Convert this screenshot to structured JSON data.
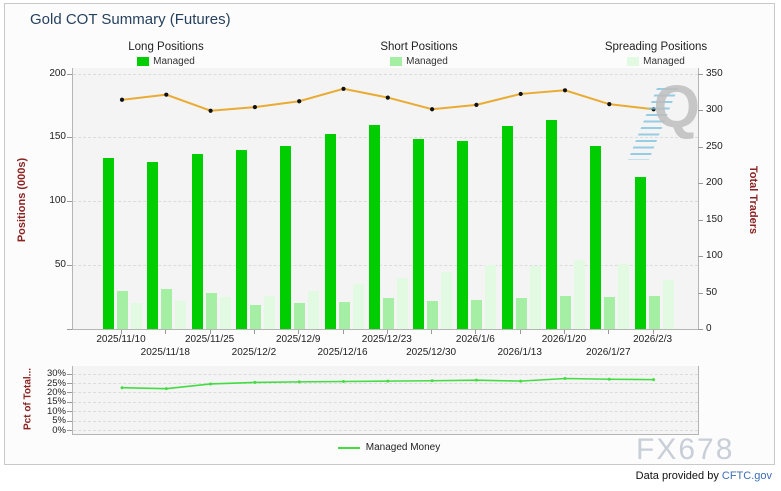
{
  "title": "Gold COT Summary (Futures)",
  "legend_groups": [
    {
      "title": "Long Positions",
      "item": "Managed",
      "color": "#00CE00"
    },
    {
      "title": "Short Positions",
      "item": "Managed",
      "color": "#A5EFA5"
    },
    {
      "title": "Spreading Positions",
      "item": "Managed",
      "color": "#E2FAE2"
    }
  ],
  "chart_data": [
    {
      "type": "bar",
      "title": "Gold COT Summary (Futures)",
      "categories": [
        "2025/11/10",
        "2025/11/18",
        "2025/11/25",
        "2025/12/2",
        "2025/12/9",
        "2025/12/16",
        "2025/12/23",
        "2025/12/30",
        "2026/1/6",
        "2026/1/13",
        "2026/1/20",
        "2026/1/27",
        "2026/2/3"
      ],
      "series": [
        {
          "name": "Managed Long",
          "type": "bar",
          "axis": "left",
          "color": "#00CE00",
          "values": [
            134,
            131,
            137,
            140,
            143,
            153,
            160,
            149,
            147,
            159,
            164,
            143,
            119
          ]
        },
        {
          "name": "Managed Short",
          "type": "bar",
          "axis": "left",
          "color": "#A5EFA5",
          "values": [
            30,
            31,
            28,
            19,
            20,
            21,
            24,
            22,
            23,
            24,
            26,
            25,
            26
          ]
        },
        {
          "name": "Managed Spreading",
          "type": "bar",
          "axis": "left",
          "color": "#E2FAE2",
          "values": [
            20,
            22,
            25,
            26,
            30,
            35,
            40,
            45,
            50,
            49,
            54,
            51,
            38
          ]
        },
        {
          "name": "Total Traders",
          "type": "line",
          "axis": "right",
          "color": "#EAAB33",
          "marker_color": "#111111",
          "values": [
            314,
            321,
            299,
            304,
            312,
            329,
            317,
            301,
            307,
            322,
            327,
            308,
            301
          ]
        }
      ],
      "ylabel": "Positions (000s)",
      "ylim": [
        0,
        200
      ],
      "yticks": [
        50,
        100,
        150,
        200
      ],
      "y2label": "Total Traders",
      "y2lim": [
        0,
        350
      ],
      "y2ticks": [
        0,
        50,
        100,
        150,
        200,
        250,
        300,
        350
      ],
      "grid": true,
      "legend_position": "top",
      "xlabel": ""
    },
    {
      "type": "line",
      "title": "",
      "categories": [
        "2025/11/10",
        "2025/11/18",
        "2025/11/25",
        "2025/12/2",
        "2025/12/9",
        "2025/12/16",
        "2025/12/23",
        "2025/12/30",
        "2026/1/6",
        "2026/1/13",
        "2026/1/20",
        "2026/1/27",
        "2026/2/3"
      ],
      "series": [
        {
          "name": "Managed Money",
          "type": "line",
          "axis": "left",
          "color": "#43DC43",
          "values": [
            22.5,
            22,
            24.5,
            25.3,
            25.6,
            25.8,
            26,
            26.2,
            26.5,
            26,
            27.4,
            27,
            26.8
          ]
        }
      ],
      "ylabel": "Pct of Total...",
      "ylim": [
        0,
        30
      ],
      "yticks": [
        0,
        5,
        10,
        15,
        20,
        25,
        30
      ],
      "ytick_suffix": "%",
      "grid": true,
      "legend_position": "bottom",
      "xlabel": ""
    }
  ],
  "watermarks": {
    "q_logo": "Q",
    "brand": "FX678"
  },
  "footer": {
    "text": "Data provided by ",
    "link_label": "CFTC.gov"
  },
  "colors": {
    "title_text": "#26415E",
    "axis_title_text": "#8B2323",
    "tick_text": "#222222",
    "plot_background": "#F3F4F3",
    "gridline": "#DCDCDC",
    "axis_line": "#B5B5B5",
    "long_bar": "#00CE00",
    "short_bar": "#A5EFA5",
    "spreading_bar": "#E2FAE2",
    "total_traders_line": "#EAAB33",
    "line_marker": "#111111",
    "managed_money_line": "#43DC43",
    "watermark_q": "#BEBEBE",
    "watermark_fx": "#C9CFD9",
    "link": "#3E6DB5"
  }
}
